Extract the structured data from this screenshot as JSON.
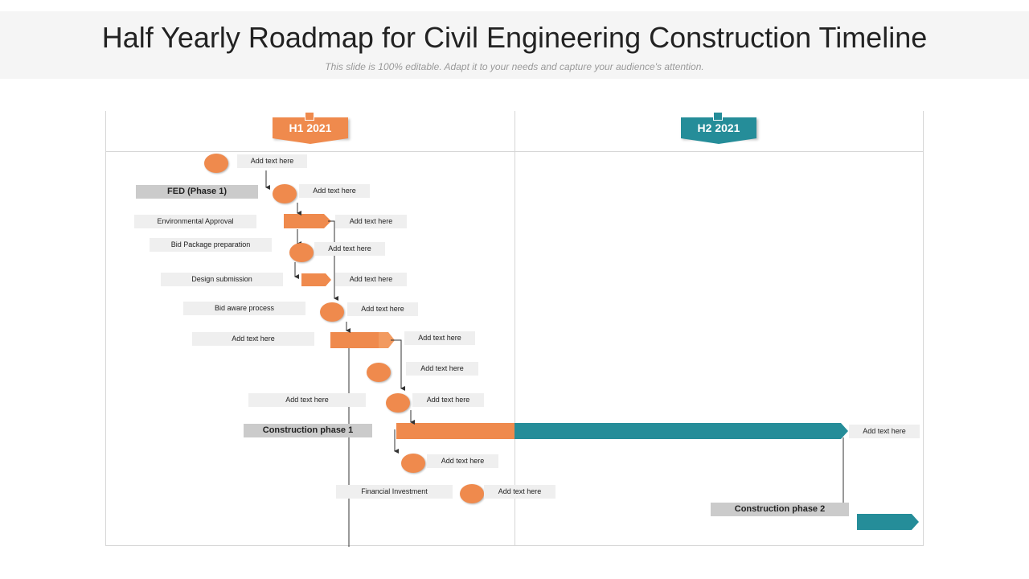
{
  "title": "Half Yearly Roadmap for Civil Engineering Construction Timeline",
  "subtitle": "This slide is 100% editable. Adapt it to your needs and capture your audience's attention.",
  "colors": {
    "orange": "#ef8a4d",
    "teal": "#258d99",
    "label_bg": "#efefef",
    "phase_bg": "#cbcbcb"
  },
  "periods": [
    {
      "label": "H1 2021"
    },
    {
      "label": "H2 2021"
    }
  ],
  "labels": {
    "fed": "FED  (Phase 1)",
    "environmental": "Environmental Approval",
    "bid_package": "Bid Package  preparation",
    "design": "Design submission",
    "bid_award": "Bid aware  process",
    "left_placeholder_1": "Add text here",
    "left_placeholder_2": "Add text here",
    "construction_1": "Construction phase 1",
    "financial": "Financial  Investment",
    "construction_2": "Construction phase 2"
  },
  "placeholder": "Add text here"
}
